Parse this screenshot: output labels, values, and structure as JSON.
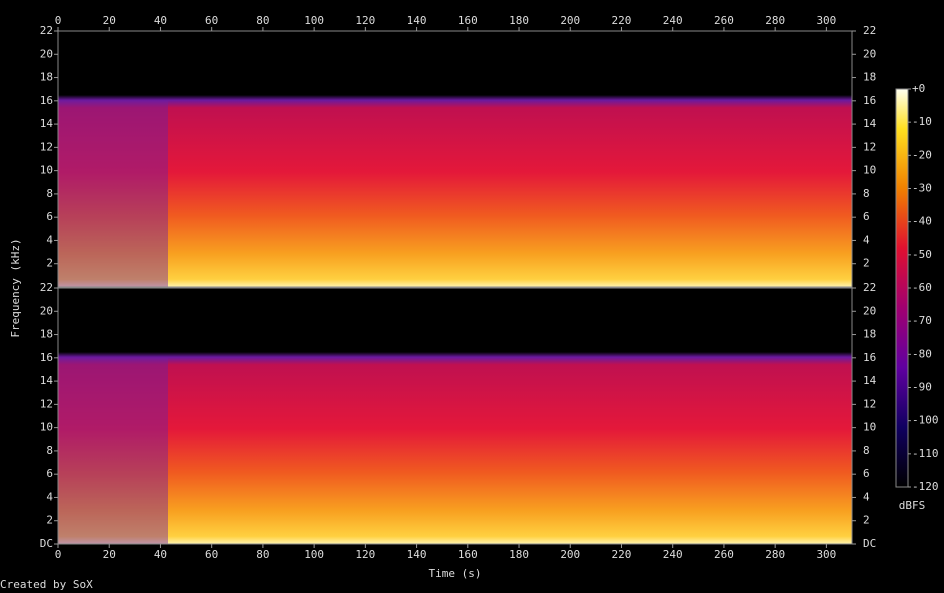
{
  "chart_data": {
    "type": "spectrogram",
    "x_label": "Time (s)",
    "y_label": "Frequency (kHz)",
    "credit": "Created by SoX",
    "xlim": [
      0,
      310
    ],
    "xticks": [
      0,
      20,
      40,
      60,
      80,
      100,
      120,
      140,
      160,
      180,
      200,
      220,
      240,
      260,
      280,
      300
    ],
    "panels": [
      {
        "ylim": [
          0,
          22
        ],
        "yticks": [
          2,
          4,
          6,
          8,
          10,
          12,
          14,
          16,
          18,
          20,
          22
        ]
      },
      {
        "ylim": [
          0,
          22
        ],
        "yticks": [
          {
            "value": 0,
            "label": "DC"
          },
          2,
          4,
          6,
          8,
          10,
          12,
          14,
          16,
          18,
          20,
          22
        ]
      }
    ],
    "colorbar": {
      "label": "dBFS",
      "lim": [
        -120,
        0
      ],
      "ticks": [
        {
          "value": 0,
          "label": "+0"
        },
        -10,
        -20,
        -30,
        -40,
        -50,
        -60,
        -70,
        -80,
        -90,
        -100,
        -110,
        -120
      ]
    }
  }
}
